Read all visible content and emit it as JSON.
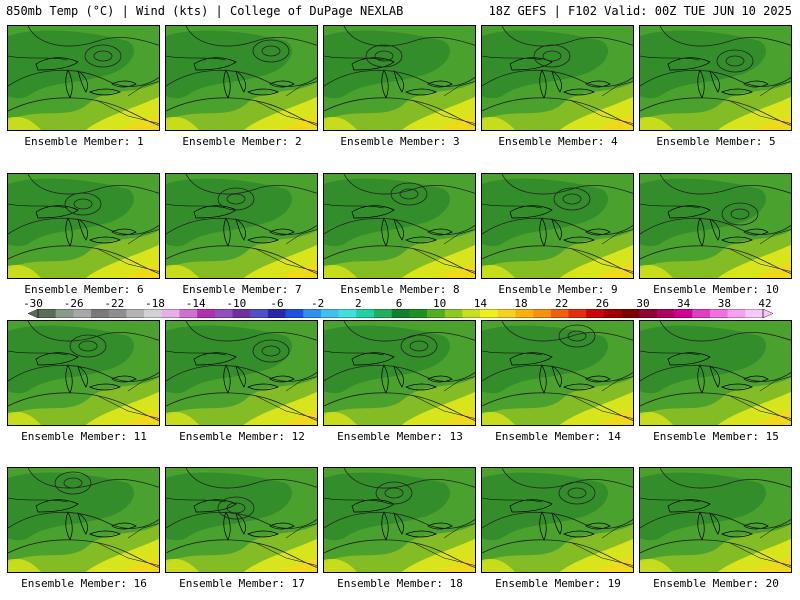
{
  "header": {
    "left": "850mb Temp (°C) | Wind (kts) | College of DuPage NEXLAB",
    "right": "18Z GEFS | F102 Valid: 00Z TUE JUN 10 2025"
  },
  "panel_label_prefix": "Ensemble Member: ",
  "members": [
    {
      "number": "1",
      "lows": [
        [
          95,
          30
        ]
      ]
    },
    {
      "number": "2",
      "lows": [
        [
          105,
          25
        ]
      ]
    },
    {
      "number": "3",
      "lows": [
        [
          60,
          30
        ]
      ]
    },
    {
      "number": "4",
      "lows": [
        [
          70,
          30
        ]
      ]
    },
    {
      "number": "5",
      "lows": [
        [
          95,
          35
        ]
      ]
    },
    {
      "number": "6",
      "lows": [
        [
          75,
          30
        ]
      ]
    },
    {
      "number": "7",
      "lows": [
        [
          70,
          25
        ]
      ]
    },
    {
      "number": "8",
      "lows": [
        [
          85,
          20
        ]
      ]
    },
    {
      "number": "9",
      "lows": [
        [
          90,
          25
        ]
      ]
    },
    {
      "number": "10",
      "lows": [
        [
          100,
          40
        ]
      ]
    },
    {
      "number": "11",
      "lows": [
        [
          80,
          25
        ]
      ]
    },
    {
      "number": "12",
      "lows": [
        [
          105,
          30
        ]
      ]
    },
    {
      "number": "13",
      "lows": [
        [
          95,
          25
        ]
      ]
    },
    {
      "number": "14",
      "lows": [
        [
          95,
          15
        ]
      ]
    },
    {
      "number": "15",
      "lows": []
    },
    {
      "number": "16",
      "lows": [
        [
          65,
          15
        ]
      ]
    },
    {
      "number": "17",
      "lows": [
        [
          70,
          40
        ]
      ]
    },
    {
      "number": "18",
      "lows": [
        [
          70,
          25
        ]
      ]
    },
    {
      "number": "19",
      "lows": [
        [
          95,
          25
        ]
      ]
    },
    {
      "number": "20",
      "lows": []
    }
  ],
  "colorbar": {
    "labels": [
      "-30",
      "-26",
      "-22",
      "-18",
      "-14",
      "-10",
      "-6",
      "-2",
      "2",
      "6",
      "10",
      "14",
      "18",
      "22",
      "26",
      "30",
      "34",
      "38",
      "42"
    ],
    "colors": [
      "#5a6e5a",
      "#8a9a8a",
      "#a8a8a8",
      "#7a7a7a",
      "#8e8e8e",
      "#b4b4b4",
      "#d2d2d2",
      "#e8b0e8",
      "#d070d0",
      "#b030b0",
      "#9050c0",
      "#7030a0",
      "#5050c8",
      "#2828a8",
      "#2050e0",
      "#3090f0",
      "#40c0f0",
      "#40e0e0",
      "#20d0a0",
      "#20b060",
      "#108030",
      "#209020",
      "#50b020",
      "#90c820",
      "#c8e020",
      "#f0f020",
      "#f8d020",
      "#f8b010",
      "#f89010",
      "#f06010",
      "#e03010",
      "#c80808",
      "#a00000",
      "#800000",
      "#900030",
      "#b00060",
      "#d00090",
      "#e040c0",
      "#f070e0",
      "#f8a0f0",
      "#f8c8f8"
    ]
  }
}
